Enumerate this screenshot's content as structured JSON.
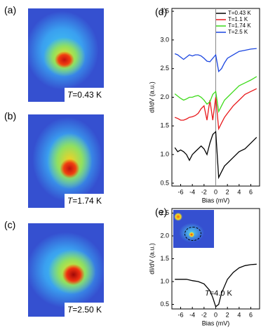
{
  "maps": [
    {
      "label": "(a)",
      "annotation": "T=0.43 K"
    },
    {
      "label": "(b)",
      "annotation": "T=1.74 K"
    },
    {
      "label": "(c)",
      "annotation": "T=2.50 K"
    }
  ],
  "chart_data": [
    {
      "type": "line",
      "panel": "(d)",
      "x_label": "Bias (mV)",
      "y_label": "dI/dV (a.u.)",
      "x": [
        -7,
        -6.5,
        -6,
        -5.5,
        -5,
        -4.5,
        -4,
        -3.5,
        -3,
        -2.5,
        -2,
        -1.5,
        -1,
        -0.5,
        0,
        0.5,
        1,
        1.5,
        2,
        3,
        4,
        5,
        6,
        7
      ],
      "series": [
        {
          "name": "T=0.43 K",
          "color": "#000000",
          "values": [
            1.12,
            1.05,
            1.08,
            1.05,
            1.0,
            0.9,
            1.0,
            1.05,
            1.1,
            1.15,
            1.1,
            1.0,
            1.2,
            1.35,
            1.4,
            0.6,
            0.7,
            0.8,
            0.85,
            0.95,
            1.05,
            1.1,
            1.2,
            1.3
          ]
        },
        {
          "name": "T=1.1 K",
          "color": "#e8191c",
          "values": [
            1.65,
            1.63,
            1.6,
            1.6,
            1.62,
            1.65,
            1.66,
            1.68,
            1.72,
            1.8,
            1.85,
            1.6,
            1.95,
            1.6,
            2.0,
            1.45,
            1.55,
            1.65,
            1.72,
            1.85,
            1.95,
            2.05,
            2.1,
            2.15
          ]
        },
        {
          "name": "T=1.74 K",
          "color": "#3edb1b",
          "values": [
            2.06,
            2.02,
            1.98,
            1.95,
            1.97,
            2.0,
            2.0,
            2.02,
            2.03,
            2.0,
            1.95,
            1.88,
            1.92,
            2.05,
            2.1,
            1.75,
            1.85,
            1.95,
            2.0,
            2.1,
            2.2,
            2.25,
            2.3,
            2.36
          ]
        },
        {
          "name": "T=2.5 K",
          "color": "#1b46e0",
          "values": [
            2.76,
            2.74,
            2.7,
            2.66,
            2.7,
            2.74,
            2.72,
            2.74,
            2.74,
            2.72,
            2.68,
            2.63,
            2.62,
            2.68,
            2.74,
            2.45,
            2.5,
            2.6,
            2.68,
            2.74,
            2.8,
            2.82,
            2.84,
            2.85
          ]
        }
      ],
      "xlim": [
        -7.5,
        7.5
      ],
      "xticks": [
        -6,
        -4,
        -2,
        0,
        2,
        4,
        6
      ],
      "ylim": [
        0.45,
        3.55
      ],
      "yticks": [
        0.5,
        {
          "value": 1,
          "label": "1.0"
        },
        1.5,
        {
          "value": 2,
          "label": "2.0"
        },
        2.5,
        {
          "value": 3,
          "label": "3.0"
        },
        3.5
      ],
      "vline": 0,
      "legend": "upper right",
      "grid": false
    },
    {
      "type": "line",
      "panel": "(e)",
      "x_label": "Bias (mV)",
      "y_label": "dI/dV (a.u.)",
      "annotation": "T=4.0 K",
      "x": [
        -7,
        -6,
        -5,
        -4,
        -3,
        -2,
        -1,
        -0.5,
        0,
        0.5,
        1,
        2,
        3,
        4,
        5,
        6,
        7
      ],
      "series": [
        {
          "color": "#000000",
          "values": [
            1.05,
            1.05,
            1.05,
            1.02,
            1.0,
            0.95,
            0.8,
            0.65,
            0.45,
            0.5,
            0.75,
            1.05,
            1.2,
            1.3,
            1.35,
            1.37,
            1.38
          ]
        }
      ],
      "xlim": [
        -7.5,
        7.5
      ],
      "xticks": [
        -6,
        -4,
        -2,
        0,
        2,
        4,
        6
      ],
      "ylim": [
        0.4,
        2.6
      ],
      "yticks": [
        0.5,
        {
          "value": 1,
          "label": "1.0"
        },
        1.5,
        {
          "value": 2,
          "label": "2.0"
        },
        2.5
      ],
      "grid": false
    }
  ]
}
